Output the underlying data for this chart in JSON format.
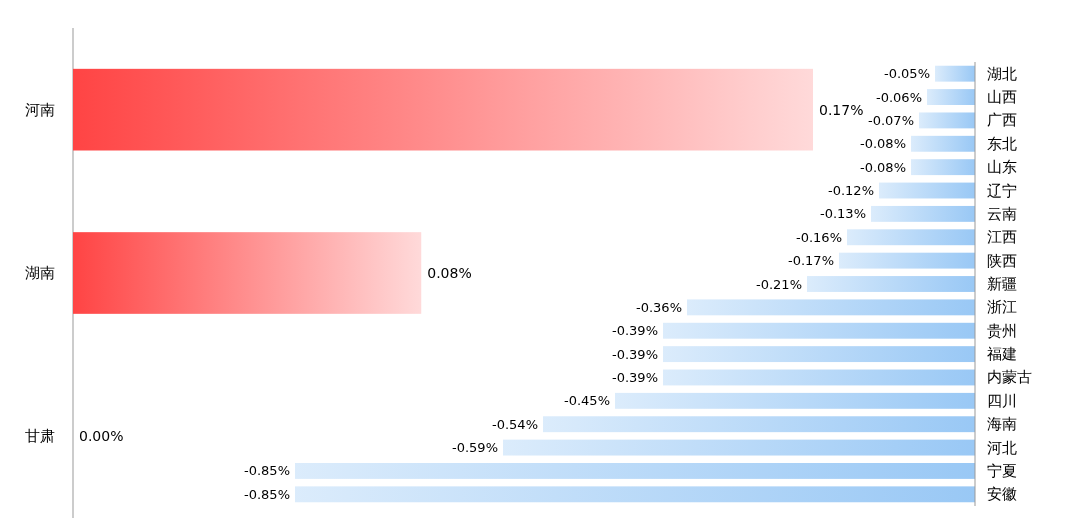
{
  "chart_data": [
    {
      "type": "bar",
      "orientation": "horizontal",
      "categories": [
        "河南",
        "湖南",
        "甘肃"
      ],
      "values": [
        0.17,
        0.08,
        0.0
      ],
      "value_labels": [
        "0.17%",
        "0.08%",
        "0.00%"
      ],
      "color": "#ff4444"
    },
    {
      "type": "bar",
      "orientation": "horizontal",
      "categories": [
        "湖北",
        "山西",
        "广西",
        "东北",
        "山东",
        "辽宁",
        "云南",
        "江西",
        "陕西",
        "新疆",
        "浙江",
        "贵州",
        "福建",
        "内蒙古",
        "四川",
        "海南",
        "河北",
        "宁夏",
        "安徽"
      ],
      "values": [
        -0.05,
        -0.06,
        -0.07,
        -0.08,
        -0.08,
        -0.12,
        -0.13,
        -0.16,
        -0.17,
        -0.21,
        -0.36,
        -0.39,
        -0.39,
        -0.39,
        -0.45,
        -0.54,
        -0.59,
        -0.85,
        -0.85
      ],
      "value_labels": [
        "-0.05%",
        "-0.06%",
        "-0.07%",
        "-0.08%",
        "-0.08%",
        "-0.12%",
        "-0.13%",
        "-0.16%",
        "-0.17%",
        "-0.21%",
        "-0.36%",
        "-0.39%",
        "-0.39%",
        "-0.39%",
        "-0.45%",
        "-0.54%",
        "-0.59%",
        "-0.85%",
        "-0.85%"
      ],
      "color": "#99c8f5"
    }
  ]
}
